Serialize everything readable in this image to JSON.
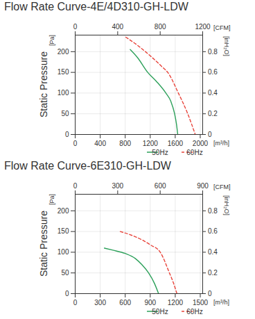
{
  "chart_data": [
    {
      "type": "line",
      "title": "Flow Rate Curve-4E/4D310-GH-LDW",
      "xlabel": "[m³/h]",
      "x2label": "[CFM]",
      "ylabel": "Static Pressure",
      "yunit": "[Pa]",
      "y2label": "[inH₂O]",
      "xlim": [
        0,
        2039
      ],
      "xticks": [
        0,
        400,
        800,
        1200,
        1600,
        2000
      ],
      "x2lim": [
        0,
        1200
      ],
      "x2ticks": [
        0,
        400,
        800,
        1200
      ],
      "ylim": [
        0,
        240
      ],
      "yticks": [
        0,
        50,
        100,
        150,
        200
      ],
      "y2lim": [
        0,
        0.96
      ],
      "y2ticks": [
        0,
        0.2,
        0.4,
        0.6,
        0.8
      ],
      "grid": true,
      "legend": "bottom right",
      "series": [
        {
          "name": "50Hz",
          "color": "#2ca05a",
          "line_style": "solid",
          "x": [
            880,
            1000,
            1160,
            1300,
            1450,
            1530,
            1590,
            1620,
            1640
          ],
          "values": [
            205,
            185,
            150,
            128,
            100,
            80,
            50,
            25,
            0
          ]
        },
        {
          "name": "60Hz",
          "color": "#e8433a",
          "line_style": "dashed",
          "x": [
            810,
            1000,
            1200,
            1400,
            1480,
            1650,
            1800,
            1920
          ],
          "values": [
            235,
            215,
            190,
            162,
            150,
            100,
            50,
            0
          ]
        }
      ]
    },
    {
      "type": "line",
      "title": "Flow Rate Curve-6E310-GH-LDW",
      "xlabel": "[m³/h]",
      "x2label": "[CFM]",
      "ylabel": "Static Pressure",
      "yunit": "[Pa]",
      "y2label": "[inH₂O]",
      "xlim": [
        0,
        1529
      ],
      "xticks": [
        0,
        300,
        600,
        900,
        1200,
        1500
      ],
      "x2lim": [
        0,
        900
      ],
      "x2ticks": [
        0,
        300,
        600,
        900
      ],
      "ylim": [
        0,
        240
      ],
      "yticks": [
        0,
        50,
        100,
        150,
        200
      ],
      "y2lim": [
        0,
        0.96
      ],
      "y2ticks": [
        0,
        0.2,
        0.4,
        0.6,
        0.8
      ],
      "grid": true,
      "legend": "bottom right",
      "series": [
        {
          "name": "50Hz",
          "color": "#2ca05a",
          "line_style": "solid",
          "x": [
            350,
            450,
            600,
            720,
            800,
            880,
            950,
            1000
          ],
          "values": [
            110,
            105,
            97,
            85,
            70,
            50,
            25,
            0
          ]
        },
        {
          "name": "60Hz",
          "color": "#e8433a",
          "line_style": "dashed",
          "x": [
            540,
            650,
            800,
            900,
            1020,
            1130,
            1180,
            1220
          ],
          "values": [
            150,
            143,
            130,
            118,
            100,
            50,
            25,
            0
          ]
        }
      ]
    }
  ]
}
